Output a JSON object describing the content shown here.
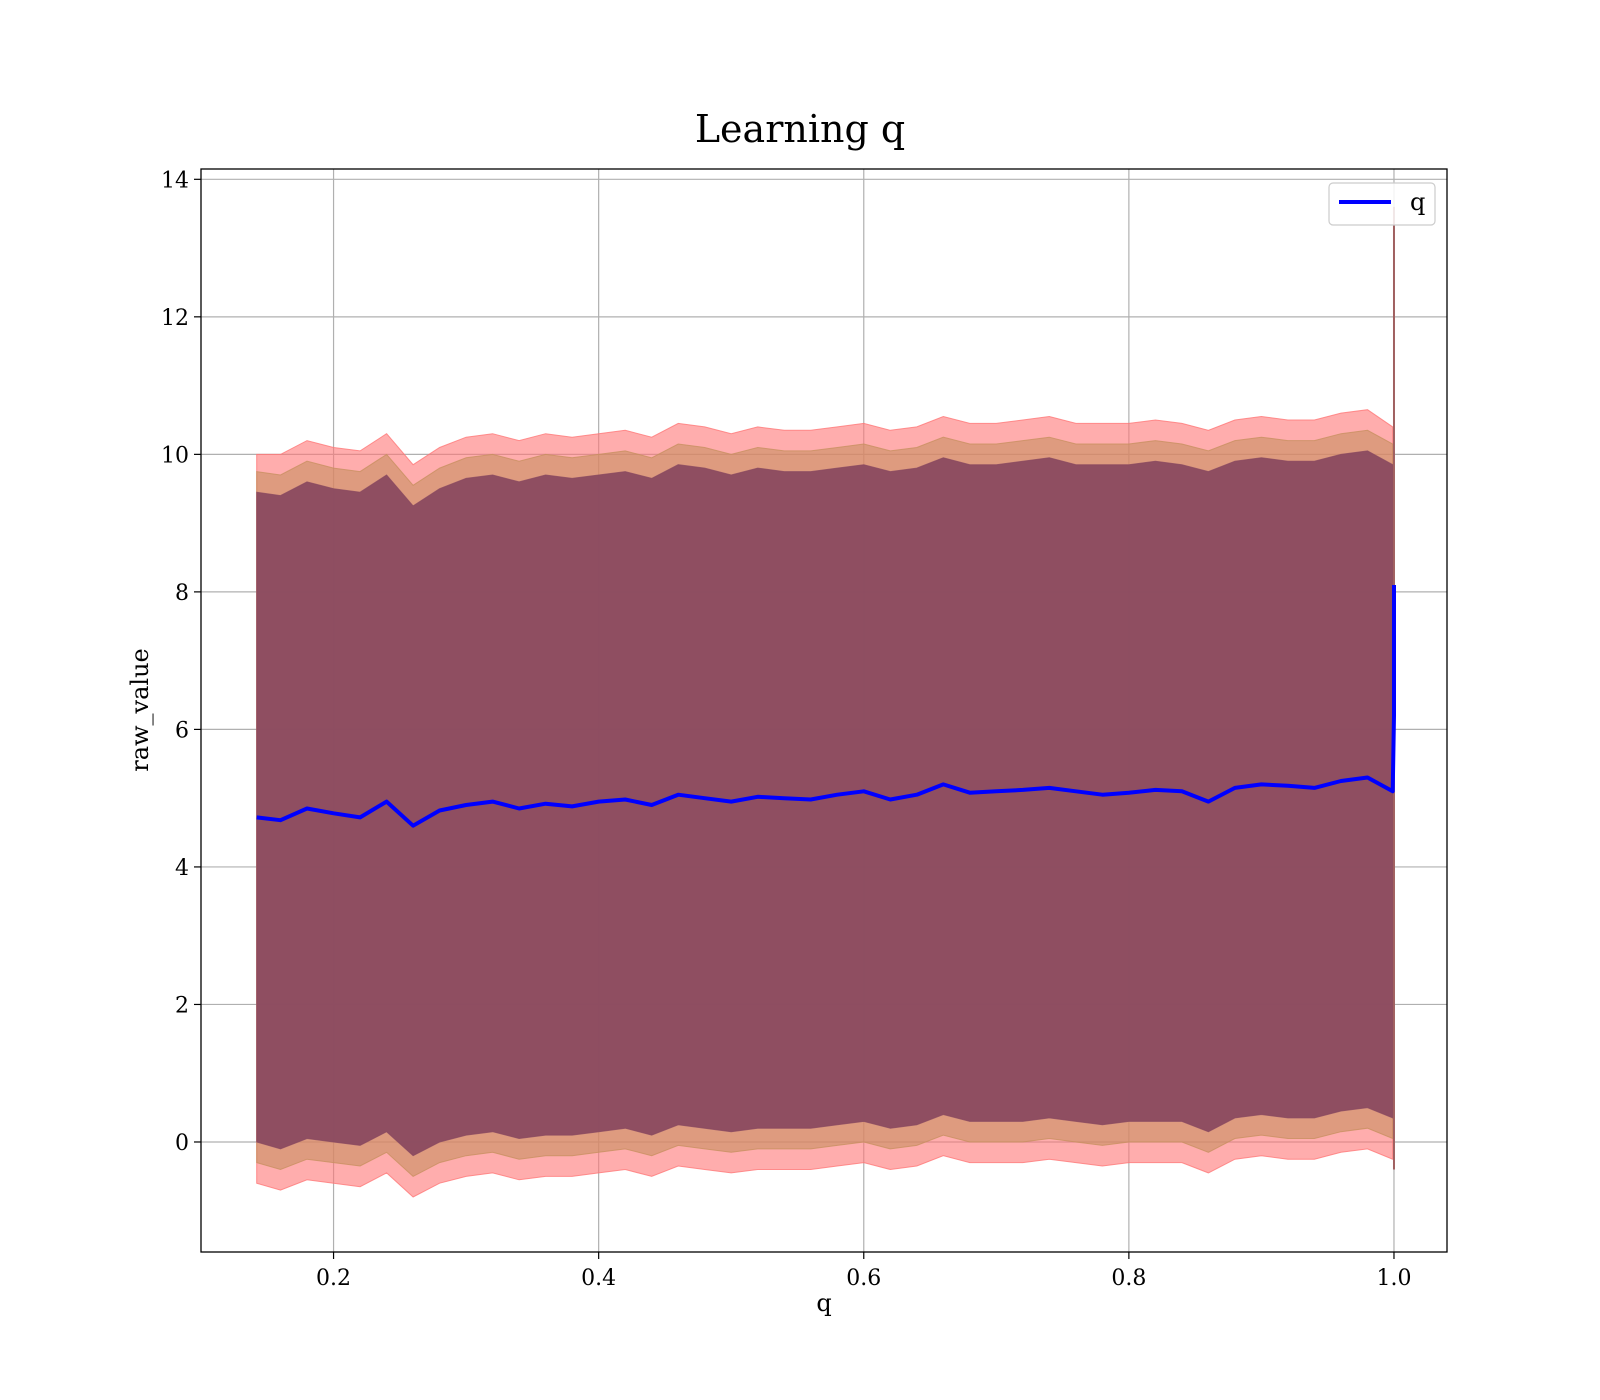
{
  "chart_data": {
    "type": "line",
    "title": "Learning q",
    "xlabel": "q",
    "ylabel": "raw_value",
    "xlim": [
      0.1,
      1.04
    ],
    "ylim": [
      -1.6,
      14.15
    ],
    "xticks": [
      0.2,
      0.4,
      0.6,
      0.8,
      1.0
    ],
    "xtick_labels": [
      "0.2",
      "0.4",
      "0.6",
      "0.8",
      "1.0"
    ],
    "yticks": [
      0,
      2,
      4,
      6,
      8,
      10,
      12,
      14
    ],
    "ytick_labels": [
      "0",
      "2",
      "4",
      "6",
      "8",
      "10",
      "12",
      "14"
    ],
    "grid": true,
    "legend": {
      "position": "top-right",
      "entries": [
        "q"
      ]
    },
    "series": [
      {
        "name": "q",
        "color": "#0000ff",
        "x": [
          0.142,
          0.16,
          0.18,
          0.2,
          0.22,
          0.24,
          0.26,
          0.28,
          0.3,
          0.32,
          0.34,
          0.36,
          0.38,
          0.4,
          0.42,
          0.44,
          0.46,
          0.48,
          0.5,
          0.52,
          0.54,
          0.56,
          0.58,
          0.6,
          0.62,
          0.64,
          0.66,
          0.68,
          0.7,
          0.72,
          0.74,
          0.76,
          0.78,
          0.8,
          0.82,
          0.84,
          0.86,
          0.88,
          0.9,
          0.92,
          0.94,
          0.96,
          0.98,
          0.999,
          1.0,
          1.0
        ],
        "y": [
          4.72,
          4.68,
          4.85,
          4.78,
          4.72,
          4.95,
          4.6,
          4.82,
          4.9,
          4.95,
          4.85,
          4.92,
          4.88,
          4.95,
          4.98,
          4.9,
          5.05,
          5.0,
          4.95,
          5.02,
          5.0,
          4.98,
          5.05,
          5.1,
          4.98,
          5.05,
          5.2,
          5.08,
          5.1,
          5.12,
          5.15,
          5.1,
          5.05,
          5.08,
          5.12,
          5.1,
          4.95,
          5.15,
          5.2,
          5.18,
          5.15,
          5.25,
          5.3,
          5.1,
          6.2,
          8.1
        ]
      }
    ],
    "bands": [
      {
        "label": "outer band",
        "color": "#ff7777",
        "x": [
          0.142,
          0.16,
          0.18,
          0.2,
          0.22,
          0.24,
          0.26,
          0.28,
          0.3,
          0.32,
          0.34,
          0.36,
          0.38,
          0.4,
          0.42,
          0.44,
          0.46,
          0.48,
          0.5,
          0.52,
          0.54,
          0.56,
          0.58,
          0.6,
          0.62,
          0.64,
          0.66,
          0.68,
          0.7,
          0.72,
          0.74,
          0.76,
          0.78,
          0.8,
          0.82,
          0.84,
          0.86,
          0.88,
          0.9,
          0.92,
          0.94,
          0.96,
          0.98,
          0.999
        ],
        "upper": [
          10.0,
          10.0,
          10.2,
          10.1,
          10.05,
          10.3,
          9.85,
          10.1,
          10.25,
          10.3,
          10.2,
          10.3,
          10.25,
          10.3,
          10.35,
          10.25,
          10.45,
          10.4,
          10.3,
          10.4,
          10.35,
          10.35,
          10.4,
          10.45,
          10.35,
          10.4,
          10.55,
          10.45,
          10.45,
          10.5,
          10.55,
          10.45,
          10.45,
          10.45,
          10.5,
          10.45,
          10.35,
          10.5,
          10.55,
          10.5,
          10.5,
          10.6,
          10.65,
          10.4
        ],
        "lower": [
          -0.6,
          -0.7,
          -0.55,
          -0.6,
          -0.65,
          -0.45,
          -0.8,
          -0.6,
          -0.5,
          -0.45,
          -0.55,
          -0.5,
          -0.5,
          -0.45,
          -0.4,
          -0.5,
          -0.35,
          -0.4,
          -0.45,
          -0.4,
          -0.4,
          -0.4,
          -0.35,
          -0.3,
          -0.4,
          -0.35,
          -0.2,
          -0.3,
          -0.3,
          -0.3,
          -0.25,
          -0.3,
          -0.35,
          -0.3,
          -0.3,
          -0.3,
          -0.45,
          -0.25,
          -0.2,
          -0.25,
          -0.25,
          -0.15,
          -0.1,
          -0.25
        ]
      },
      {
        "label": "middle band",
        "color": "#c89060",
        "x": [
          0.142,
          0.16,
          0.18,
          0.2,
          0.22,
          0.24,
          0.26,
          0.28,
          0.3,
          0.32,
          0.34,
          0.36,
          0.38,
          0.4,
          0.42,
          0.44,
          0.46,
          0.48,
          0.5,
          0.52,
          0.54,
          0.56,
          0.58,
          0.6,
          0.62,
          0.64,
          0.66,
          0.68,
          0.7,
          0.72,
          0.74,
          0.76,
          0.78,
          0.8,
          0.82,
          0.84,
          0.86,
          0.88,
          0.9,
          0.92,
          0.94,
          0.96,
          0.98,
          0.999
        ],
        "upper": [
          9.75,
          9.7,
          9.9,
          9.8,
          9.75,
          10.0,
          9.55,
          9.8,
          9.95,
          10.0,
          9.9,
          10.0,
          9.95,
          10.0,
          10.05,
          9.95,
          10.15,
          10.1,
          10.0,
          10.1,
          10.05,
          10.05,
          10.1,
          10.15,
          10.05,
          10.1,
          10.25,
          10.15,
          10.15,
          10.2,
          10.25,
          10.15,
          10.15,
          10.15,
          10.2,
          10.15,
          10.05,
          10.2,
          10.25,
          10.2,
          10.2,
          10.3,
          10.35,
          10.15
        ],
        "lower": [
          -0.3,
          -0.4,
          -0.25,
          -0.3,
          -0.35,
          -0.15,
          -0.5,
          -0.3,
          -0.2,
          -0.15,
          -0.25,
          -0.2,
          -0.2,
          -0.15,
          -0.1,
          -0.2,
          -0.05,
          -0.1,
          -0.15,
          -0.1,
          -0.1,
          -0.1,
          -0.05,
          0.0,
          -0.1,
          -0.05,
          0.1,
          0.0,
          0.0,
          0.0,
          0.05,
          0.0,
          -0.05,
          0.0,
          0.0,
          0.0,
          -0.15,
          0.05,
          0.1,
          0.05,
          0.05,
          0.15,
          0.2,
          0.05
        ]
      },
      {
        "label": "inner band",
        "color": "#8a4a60",
        "x": [
          0.142,
          0.16,
          0.18,
          0.2,
          0.22,
          0.24,
          0.26,
          0.28,
          0.3,
          0.32,
          0.34,
          0.36,
          0.38,
          0.4,
          0.42,
          0.44,
          0.46,
          0.48,
          0.5,
          0.52,
          0.54,
          0.56,
          0.58,
          0.6,
          0.62,
          0.64,
          0.66,
          0.68,
          0.7,
          0.72,
          0.74,
          0.76,
          0.78,
          0.8,
          0.82,
          0.84,
          0.86,
          0.88,
          0.9,
          0.92,
          0.94,
          0.96,
          0.98,
          0.999
        ],
        "upper": [
          9.45,
          9.4,
          9.6,
          9.5,
          9.45,
          9.7,
          9.25,
          9.5,
          9.65,
          9.7,
          9.6,
          9.7,
          9.65,
          9.7,
          9.75,
          9.65,
          9.85,
          9.8,
          9.7,
          9.8,
          9.75,
          9.75,
          9.8,
          9.85,
          9.75,
          9.8,
          9.95,
          9.85,
          9.85,
          9.9,
          9.95,
          9.85,
          9.85,
          9.85,
          9.9,
          9.85,
          9.75,
          9.9,
          9.95,
          9.9,
          9.9,
          10.0,
          10.05,
          9.85
        ],
        "lower": [
          0.0,
          -0.1,
          0.05,
          0.0,
          -0.05,
          0.15,
          -0.2,
          0.0,
          0.1,
          0.15,
          0.05,
          0.1,
          0.1,
          0.15,
          0.2,
          0.1,
          0.25,
          0.2,
          0.15,
          0.2,
          0.2,
          0.2,
          0.25,
          0.3,
          0.2,
          0.25,
          0.4,
          0.3,
          0.3,
          0.3,
          0.35,
          0.3,
          0.25,
          0.3,
          0.3,
          0.3,
          0.15,
          0.35,
          0.4,
          0.35,
          0.35,
          0.45,
          0.5,
          0.35
        ]
      }
    ],
    "spike": {
      "x": 1.0,
      "y_min": -0.4,
      "y_max": 13.6,
      "color": "#a06060"
    }
  }
}
